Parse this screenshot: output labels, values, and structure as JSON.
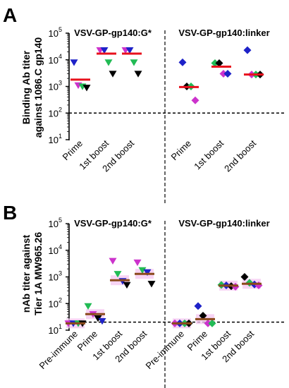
{
  "chart_data": [
    {
      "panel": "A",
      "type": "scatter",
      "titles": [
        "VSV-GP-gp140:G*",
        "VSV-GP-gp140:linker"
      ],
      "ylabel": [
        "Binding Ab titer",
        "against 1086.C gp140"
      ],
      "y_scale": "log",
      "ylim": [
        10,
        100000
      ],
      "y_ticks": [
        {
          "base": "10",
          "exp": "1"
        },
        {
          "base": "10",
          "exp": "2"
        },
        {
          "base": "10",
          "exp": "3"
        },
        {
          "base": "10",
          "exp": "4"
        },
        {
          "base": "10",
          "exp": "5"
        }
      ],
      "threshold": 100,
      "categories": [
        "Prime",
        "1st boost",
        "2nd boost",
        "Prime",
        "1st boost",
        "2nd boost"
      ],
      "median_color": "#e8101c",
      "groups": [
        {
          "median": 1800,
          "points": [
            {
              "y": 8000,
              "shape": "triangle-down",
              "color": "#1e22c8"
            },
            {
              "y": 1100,
              "shape": "triangle-down",
              "color": "#cc33cc"
            },
            {
              "y": 1000,
              "shape": "triangle-down",
              "color": "#22bb55"
            },
            {
              "y": 900,
              "shape": "triangle-down",
              "color": "#000000"
            }
          ]
        },
        {
          "median": 17000,
          "points": [
            {
              "y": 23000,
              "shape": "triangle-down",
              "color": "#cc33cc"
            },
            {
              "y": 23000,
              "shape": "triangle-down",
              "color": "#1e22c8"
            },
            {
              "y": 8000,
              "shape": "triangle-down",
              "color": "#22bb55"
            },
            {
              "y": 3000,
              "shape": "triangle-down",
              "color": "#000000"
            }
          ]
        },
        {
          "median": 17000,
          "points": [
            {
              "y": 23000,
              "shape": "triangle-down",
              "color": "#cc33cc"
            },
            {
              "y": 23000,
              "shape": "triangle-down",
              "color": "#1e22c8"
            },
            {
              "y": 8000,
              "shape": "triangle-down",
              "color": "#22bb55"
            },
            {
              "y": 3000,
              "shape": "triangle-down",
              "color": "#000000"
            }
          ]
        },
        {
          "median": 950,
          "points": [
            {
              "y": 8000,
              "shape": "diamond",
              "color": "#1e22c8"
            },
            {
              "y": 1000,
              "shape": "diamond",
              "color": "#000000"
            },
            {
              "y": 1000,
              "shape": "diamond",
              "color": "#22bb55"
            },
            {
              "y": 300,
              "shape": "diamond",
              "color": "#cc33cc"
            }
          ]
        },
        {
          "median": 5500,
          "points": [
            {
              "y": 7500,
              "shape": "diamond",
              "color": "#22bb55"
            },
            {
              "y": 7500,
              "shape": "diamond",
              "color": "#000000"
            },
            {
              "y": 3000,
              "shape": "diamond",
              "color": "#cc33cc"
            },
            {
              "y": 3000,
              "shape": "diamond",
              "color": "#1e22c8"
            }
          ]
        },
        {
          "median": 2800,
          "points": [
            {
              "y": 23000,
              "shape": "diamond",
              "color": "#1e22c8"
            },
            {
              "y": 2800,
              "shape": "diamond",
              "color": "#cc33cc"
            },
            {
              "y": 2800,
              "shape": "diamond",
              "color": "#22bb55"
            },
            {
              "y": 2800,
              "shape": "diamond",
              "color": "#000000"
            }
          ]
        }
      ]
    },
    {
      "panel": "B",
      "type": "scatter",
      "titles": [
        "VSV-GP-gp140:G*",
        "VSV-GP-gp140:linker"
      ],
      "ylabel": [
        "nAb titer against",
        "Tier 1A MW965.26"
      ],
      "y_scale": "log",
      "ylim": [
        10,
        100000
      ],
      "y_ticks": [
        {
          "base": "10",
          "exp": "1"
        },
        {
          "base": "10",
          "exp": "2"
        },
        {
          "base": "10",
          "exp": "3"
        },
        {
          "base": "10",
          "exp": "4"
        },
        {
          "base": "10",
          "exp": "5"
        }
      ],
      "threshold": 20,
      "categories": [
        "Pre-immune",
        "Prime",
        "1st boost",
        "2nd boost",
        "Pre-immune",
        "Prime",
        "1st boost",
        "2nd boost"
      ],
      "median_color": "#8b4a1c",
      "band_color": "#f4c6f0",
      "groups": [
        {
          "median": 18,
          "points": [
            {
              "y": 18,
              "shape": "triangle-down",
              "color": "#cc33cc"
            },
            {
              "y": 18,
              "shape": "triangle-down",
              "color": "#1e22c8"
            },
            {
              "y": 18,
              "shape": "triangle-down",
              "color": "#22bb55"
            },
            {
              "y": 18,
              "shape": "triangle-down",
              "color": "#000000"
            }
          ]
        },
        {
          "median": 40,
          "points": [
            {
              "y": 80,
              "shape": "triangle-down",
              "color": "#22bb55"
            },
            {
              "y": 40,
              "shape": "triangle-down",
              "color": "#cc33cc"
            },
            {
              "y": 28,
              "shape": "triangle-down",
              "color": "#000000"
            },
            {
              "y": 22,
              "shape": "triangle-down",
              "color": "#1e22c8"
            }
          ]
        },
        {
          "median": 750,
          "points": [
            {
              "y": 4000,
              "shape": "triangle-down",
              "color": "#cc33cc"
            },
            {
              "y": 1300,
              "shape": "triangle-down",
              "color": "#22bb55"
            },
            {
              "y": 700,
              "shape": "triangle-down",
              "color": "#1e22c8"
            },
            {
              "y": 500,
              "shape": "triangle-down",
              "color": "#000000"
            }
          ]
        },
        {
          "median": 1300,
          "points": [
            {
              "y": 3500,
              "shape": "triangle-down",
              "color": "#cc33cc"
            },
            {
              "y": 1800,
              "shape": "triangle-down",
              "color": "#22bb55"
            },
            {
              "y": 1500,
              "shape": "triangle-down",
              "color": "#1e22c8"
            },
            {
              "y": 550,
              "shape": "triangle-down",
              "color": "#000000"
            }
          ]
        },
        {
          "median": 18,
          "points": [
            {
              "y": 18,
              "shape": "diamond",
              "color": "#cc33cc"
            },
            {
              "y": 18,
              "shape": "diamond",
              "color": "#1e22c8"
            },
            {
              "y": 18,
              "shape": "diamond",
              "color": "#22bb55"
            },
            {
              "y": 18,
              "shape": "diamond",
              "color": "#000000"
            }
          ]
        },
        {
          "median": 26,
          "points": [
            {
              "y": 80,
              "shape": "diamond",
              "color": "#1e22c8"
            },
            {
              "y": 35,
              "shape": "diamond",
              "color": "#000000"
            },
            {
              "y": 18,
              "shape": "diamond",
              "color": "#cc33cc"
            },
            {
              "y": 18,
              "shape": "diamond",
              "color": "#22bb55"
            }
          ]
        },
        {
          "median": 470,
          "points": [
            {
              "y": 500,
              "shape": "diamond",
              "color": "#22bb55"
            },
            {
              "y": 480,
              "shape": "diamond",
              "color": "#1e22c8"
            },
            {
              "y": 450,
              "shape": "diamond",
              "color": "#000000"
            },
            {
              "y": 430,
              "shape": "diamond",
              "color": "#cc33cc"
            }
          ]
        },
        {
          "median": 550,
          "points": [
            {
              "y": 1000,
              "shape": "diamond",
              "color": "#000000"
            },
            {
              "y": 600,
              "shape": "diamond",
              "color": "#22bb55"
            },
            {
              "y": 520,
              "shape": "diamond",
              "color": "#1e22c8"
            },
            {
              "y": 480,
              "shape": "diamond",
              "color": "#cc33cc"
            }
          ]
        }
      ]
    }
  ]
}
